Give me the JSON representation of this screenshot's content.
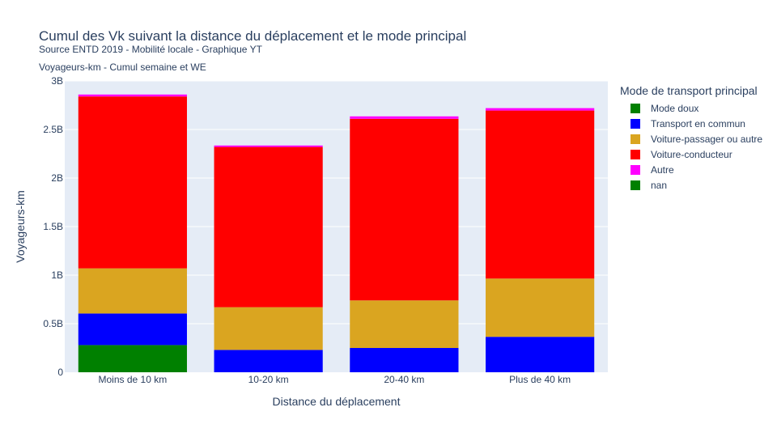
{
  "title": "Cumul des Vk suivant la distance du déplacement et le mode principal",
  "subtitle": "Source ENTD 2019 - Mobilité locale - Graphique YT",
  "subtitle2": "Voyageurs-km - Cumul semaine et WE",
  "legend_title": "Mode de transport principal",
  "colors": {
    "plot_bg": "#e5ecf6",
    "grid": "#ffffff",
    "text": "#2a3f5f"
  },
  "chart_data": {
    "type": "bar",
    "stacked": true,
    "xlabel": "Distance du déplacement",
    "ylabel": "Voyageurs-km",
    "ylim": [
      0,
      3000000000
    ],
    "yticks": [
      0,
      500000000,
      1000000000,
      1500000000,
      2000000000,
      2500000000,
      3000000000
    ],
    "ytick_labels": [
      "0",
      "0.5B",
      "1B",
      "1.5B",
      "2B",
      "2.5B",
      "3B"
    ],
    "categories": [
      "Moins de 10 km",
      "10-20 km",
      "20-40 km",
      "Plus de 40 km"
    ],
    "grid": true,
    "legend_position": "right",
    "series": [
      {
        "name": "Mode doux",
        "color": "#008000",
        "values": [
          280000000,
          0,
          0,
          0
        ]
      },
      {
        "name": "Transport en commun",
        "color": "#0000ff",
        "values": [
          325000000,
          230000000,
          250000000,
          365000000
        ]
      },
      {
        "name": "Voiture-passager ou autre",
        "color": "#daa520",
        "values": [
          465000000,
          440000000,
          490000000,
          600000000
        ]
      },
      {
        "name": "Voiture-conducteur",
        "color": "#ff0000",
        "values": [
          1770000000,
          1650000000,
          1870000000,
          1730000000
        ]
      },
      {
        "name": "Autre",
        "color": "#ff00ff",
        "values": [
          20000000,
          15000000,
          25000000,
          25000000
        ]
      },
      {
        "name": "nan",
        "color": "#008000",
        "values": [
          0,
          0,
          0,
          0
        ]
      }
    ]
  }
}
